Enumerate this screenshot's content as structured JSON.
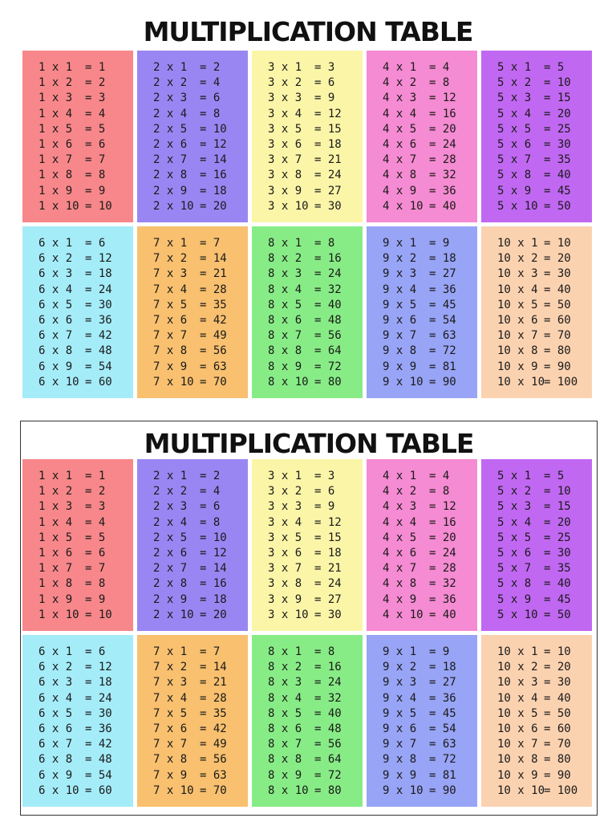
{
  "title": "MULTIPLICATION TABLE",
  "colors": [
    "#f7878a",
    "#9a86f2",
    "#fbf5a8",
    "#f58bd2",
    "#c168f2",
    "#a5ecf9",
    "#f8c06f",
    "#88ec86",
    "#98a4f5",
    "#fbd2b0"
  ],
  "tables": [
    {
      "rows": [
        {
          "lhs": "1 x 1",
          "rhs": "= 1"
        },
        {
          "lhs": "1 x 2",
          "rhs": "= 2"
        },
        {
          "lhs": "1 x 3",
          "rhs": "= 3"
        },
        {
          "lhs": "1 x 4",
          "rhs": "= 4"
        },
        {
          "lhs": "1 x 5",
          "rhs": "= 5"
        },
        {
          "lhs": "1 x 6",
          "rhs": "= 6"
        },
        {
          "lhs": "1 x 7",
          "rhs": "= 7"
        },
        {
          "lhs": "1 x 8",
          "rhs": "= 8"
        },
        {
          "lhs": "1 x 9",
          "rhs": "= 9"
        },
        {
          "lhs": "1 x 10",
          "rhs": "= 10"
        }
      ]
    },
    {
      "rows": [
        {
          "lhs": "2 x 1",
          "rhs": "= 2"
        },
        {
          "lhs": "2 x 2",
          "rhs": "= 4"
        },
        {
          "lhs": "2 x 3",
          "rhs": "= 6"
        },
        {
          "lhs": "2 x 4",
          "rhs": "= 8"
        },
        {
          "lhs": "2 x 5",
          "rhs": "= 10"
        },
        {
          "lhs": "2 x 6",
          "rhs": "= 12"
        },
        {
          "lhs": "2 x 7",
          "rhs": "= 14"
        },
        {
          "lhs": "2 x 8",
          "rhs": "= 16"
        },
        {
          "lhs": "2 x 9",
          "rhs": "= 18"
        },
        {
          "lhs": "2 x 10",
          "rhs": "= 20"
        }
      ]
    },
    {
      "rows": [
        {
          "lhs": "3 x 1",
          "rhs": "= 3"
        },
        {
          "lhs": "3 x 2",
          "rhs": "= 6"
        },
        {
          "lhs": "3 x 3",
          "rhs": "= 9"
        },
        {
          "lhs": "3 x 4",
          "rhs": "= 12"
        },
        {
          "lhs": "3 x 5",
          "rhs": "= 15"
        },
        {
          "lhs": "3 x 6",
          "rhs": "= 18"
        },
        {
          "lhs": "3 x 7",
          "rhs": "= 21"
        },
        {
          "lhs": "3 x 8",
          "rhs": "= 24"
        },
        {
          "lhs": "3 x 9",
          "rhs": "= 27"
        },
        {
          "lhs": "3 x 10",
          "rhs": "= 30"
        }
      ]
    },
    {
      "rows": [
        {
          "lhs": "4 x 1",
          "rhs": "= 4"
        },
        {
          "lhs": "4 x 2",
          "rhs": "= 8"
        },
        {
          "lhs": "4 x 3",
          "rhs": "= 12"
        },
        {
          "lhs": "4 x 4",
          "rhs": "= 16"
        },
        {
          "lhs": "4 x 5",
          "rhs": "= 20"
        },
        {
          "lhs": "4 x 6",
          "rhs": "= 24"
        },
        {
          "lhs": "4 x 7",
          "rhs": "= 28"
        },
        {
          "lhs": "4 x 8",
          "rhs": "= 32"
        },
        {
          "lhs": "4 x 9",
          "rhs": "= 36"
        },
        {
          "lhs": "4 x 10",
          "rhs": "= 40"
        }
      ]
    },
    {
      "rows": [
        {
          "lhs": "5 x 1",
          "rhs": "= 5"
        },
        {
          "lhs": "5 x 2",
          "rhs": "= 10"
        },
        {
          "lhs": "5 x 3",
          "rhs": "= 15"
        },
        {
          "lhs": "5 x 4",
          "rhs": "= 20"
        },
        {
          "lhs": "5 x 5",
          "rhs": "= 25"
        },
        {
          "lhs": "5 x 6",
          "rhs": "= 30"
        },
        {
          "lhs": "5 x 7",
          "rhs": "= 35"
        },
        {
          "lhs": "5 x 8",
          "rhs": "= 40"
        },
        {
          "lhs": "5 x 9",
          "rhs": "= 45"
        },
        {
          "lhs": "5 x 10",
          "rhs": "= 50"
        }
      ]
    },
    {
      "rows": [
        {
          "lhs": "6 x 1",
          "rhs": "= 6"
        },
        {
          "lhs": "6 x 2",
          "rhs": "= 12"
        },
        {
          "lhs": "6 x 3",
          "rhs": "= 18"
        },
        {
          "lhs": "6 x 4",
          "rhs": "= 24"
        },
        {
          "lhs": "6 x 5",
          "rhs": "= 30"
        },
        {
          "lhs": "6 x 6",
          "rhs": "= 36"
        },
        {
          "lhs": "6 x 7",
          "rhs": "= 42"
        },
        {
          "lhs": "6 x 8",
          "rhs": "= 48"
        },
        {
          "lhs": "6 x 9",
          "rhs": "= 54"
        },
        {
          "lhs": "6 x 10",
          "rhs": "= 60"
        }
      ]
    },
    {
      "rows": [
        {
          "lhs": "7 x 1",
          "rhs": "= 7"
        },
        {
          "lhs": "7 x 2",
          "rhs": "= 14"
        },
        {
          "lhs": "7 x 3",
          "rhs": "= 21"
        },
        {
          "lhs": "7 x 4",
          "rhs": "= 28"
        },
        {
          "lhs": "7 x 5",
          "rhs": "= 35"
        },
        {
          "lhs": "7 x 6",
          "rhs": "= 42"
        },
        {
          "lhs": "7 x 7",
          "rhs": "= 49"
        },
        {
          "lhs": "7 x 8",
          "rhs": "= 56"
        },
        {
          "lhs": "7 x 9",
          "rhs": "= 63"
        },
        {
          "lhs": "7 x 10",
          "rhs": "= 70"
        }
      ]
    },
    {
      "rows": [
        {
          "lhs": "8 x 1",
          "rhs": "= 8"
        },
        {
          "lhs": "8 x 2",
          "rhs": "= 16"
        },
        {
          "lhs": "8 x 3",
          "rhs": "= 24"
        },
        {
          "lhs": "8 x 4",
          "rhs": "= 32"
        },
        {
          "lhs": "8 x 5",
          "rhs": "= 40"
        },
        {
          "lhs": "8 x 6",
          "rhs": "= 48"
        },
        {
          "lhs": "8 x 7",
          "rhs": "= 56"
        },
        {
          "lhs": "8 x 8",
          "rhs": "= 64"
        },
        {
          "lhs": "8 x 9",
          "rhs": "= 72"
        },
        {
          "lhs": "8 x 10",
          "rhs": "= 80"
        }
      ]
    },
    {
      "rows": [
        {
          "lhs": "9 x 1",
          "rhs": "= 9"
        },
        {
          "lhs": "9 x 2",
          "rhs": "= 18"
        },
        {
          "lhs": "9 x 3",
          "rhs": "= 27"
        },
        {
          "lhs": "9 x 4",
          "rhs": "= 36"
        },
        {
          "lhs": "9 x 5",
          "rhs": "= 45"
        },
        {
          "lhs": "9 x 6",
          "rhs": "= 54"
        },
        {
          "lhs": "9 x 7",
          "rhs": "= 63"
        },
        {
          "lhs": "9 x 8",
          "rhs": "= 72"
        },
        {
          "lhs": "9 x 9",
          "rhs": "= 81"
        },
        {
          "lhs": "9 x 10",
          "rhs": "= 90"
        }
      ]
    },
    {
      "rows": [
        {
          "lhs": "10 x 1",
          "rhs": "= 10"
        },
        {
          "lhs": "10 x 2",
          "rhs": "= 20"
        },
        {
          "lhs": "10 x 3",
          "rhs": "= 30"
        },
        {
          "lhs": "10 x 4",
          "rhs": "= 40"
        },
        {
          "lhs": "10 x 5",
          "rhs": "= 50"
        },
        {
          "lhs": "10 x 6",
          "rhs": "= 60"
        },
        {
          "lhs": "10 x 7",
          "rhs": "= 70"
        },
        {
          "lhs": "10 x 8",
          "rhs": "= 80"
        },
        {
          "lhs": "10 x 9",
          "rhs": "= 90"
        },
        {
          "lhs": "10 x 10",
          "rhs": "= 100"
        }
      ]
    }
  ]
}
